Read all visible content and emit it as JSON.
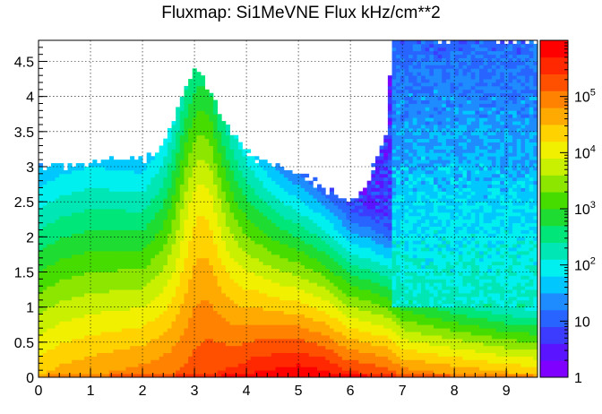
{
  "chart_data": {
    "type": "heatmap",
    "title": "Fluxmap: Si1MeVNE Flux kHz/cm**2",
    "xlabel": "",
    "ylabel": "",
    "xlim": [
      0,
      9.6
    ],
    "ylim": [
      0,
      4.8
    ],
    "x_ticks": [
      "0",
      "1",
      "2",
      "3",
      "4",
      "5",
      "6",
      "7",
      "8",
      "9"
    ],
    "y_ticks": [
      "0",
      "0.5",
      "1",
      "1.5",
      "2",
      "2.5",
      "3",
      "3.5",
      "4",
      "4.5"
    ],
    "grid": true,
    "colorbar": {
      "scale": "log",
      "range": [
        1,
        1000000
      ],
      "tick_labels": [
        {
          "base": "1",
          "exp": "",
          "value": 1
        },
        {
          "base": "10",
          "exp": "",
          "value": 10
        },
        {
          "base": "10",
          "exp": "2",
          "value": 100
        },
        {
          "base": "10",
          "exp": "3",
          "value": 1000
        },
        {
          "base": "10",
          "exp": "4",
          "value": 10000
        },
        {
          "base": "10",
          "exp": "5",
          "value": 100000
        }
      ]
    },
    "palette": [
      "#8000ff",
      "#5a14ff",
      "#3c3cff",
      "#2864ff",
      "#1e8cff",
      "#00c8ff",
      "#00f0f0",
      "#00e6b4",
      "#00e678",
      "#1edc32",
      "#46dc00",
      "#8ce600",
      "#c8f000",
      "#f0f000",
      "#ffd200",
      "#ffaa00",
      "#ff8200",
      "#ff5000",
      "#ff2800",
      "#ff0000"
    ],
    "profile_points": {
      "x": [
        0,
        0.5,
        1,
        1.5,
        2,
        2.4,
        2.8,
        3,
        3.3,
        3.6,
        3.9,
        4.2,
        4.6,
        5,
        5.5,
        5.9,
        6,
        6.3,
        6.7,
        6.8,
        7,
        7.5,
        8,
        8.5,
        9,
        9.6
      ],
      "log10_flux_at_y0": [
        4.5,
        4.7,
        4.8,
        4.9,
        5.0,
        5.1,
        5.2,
        5.3,
        5.4,
        5.5,
        5.6,
        5.8,
        5.9,
        6.0,
        5.9,
        5.6,
        5.6,
        5.5,
        5.4,
        5.3,
        5.1,
        5.0,
        4.9,
        4.8,
        4.7,
        4.6
      ],
      "decay_per_y_unit": [
        1.0,
        1.0,
        1.0,
        1.05,
        1.1,
        1.0,
        0.85,
        0.85,
        0.85,
        0.95,
        1.1,
        1.3,
        1.5,
        1.65,
        1.8,
        1.9,
        2.0,
        2.0,
        2.1,
        2.1,
        2.2,
        2.3,
        2.4,
        2.5,
        2.6,
        2.6
      ],
      "upper_edge_y": [
        3.0,
        3.0,
        3.05,
        3.1,
        3.1,
        3.3,
        4.1,
        4.4,
        4.1,
        3.6,
        3.3,
        3.1,
        3.05,
        2.9,
        2.7,
        2.5,
        2.5,
        2.7,
        3.5,
        4.8,
        4.8,
        4.8,
        4.8,
        4.8,
        4.8,
        4.8
      ]
    }
  }
}
